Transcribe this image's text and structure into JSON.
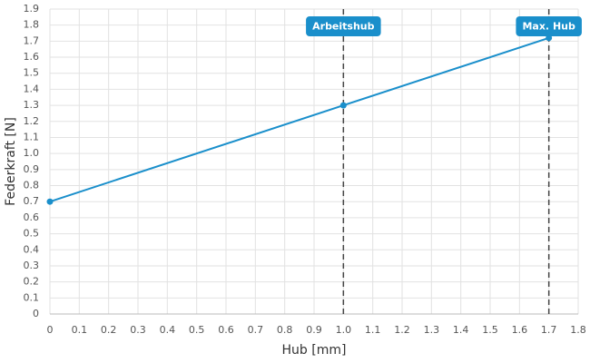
{
  "chart_data": {
    "type": "line",
    "x_label": "Hub [mm]",
    "y_label": "Federkraft [N]",
    "series": [
      {
        "name": "Federkraft",
        "color": "#1a8fcb",
        "x": [
          0,
          1,
          1.7
        ],
        "values": [
          0.7,
          1.3,
          1.72
        ]
      }
    ],
    "xlim": [
      0,
      1.8
    ],
    "xticks": [
      0,
      0.1,
      0.2,
      0.3,
      0.4,
      0.5,
      0.6,
      0.7,
      0.8,
      0.9,
      {
        "value": 1,
        "label": "1.0"
      },
      1.1,
      1.2,
      1.3,
      1.4,
      1.5,
      1.6,
      1.7,
      1.8
    ],
    "ylim": [
      0,
      1.9
    ],
    "yticks": [
      0,
      0.1,
      0.2,
      0.3,
      0.4,
      0.5,
      0.6,
      0.7,
      0.8,
      0.9,
      {
        "value": 1,
        "label": "1.0"
      },
      1.1,
      1.2,
      1.3,
      1.4,
      1.5,
      1.6,
      1.7,
      1.8,
      1.9
    ],
    "grid": true,
    "annotations": [
      {
        "x": 1,
        "label": "Arbeitshub"
      },
      {
        "x": 1.7,
        "label": "Max. Hub"
      }
    ]
  }
}
